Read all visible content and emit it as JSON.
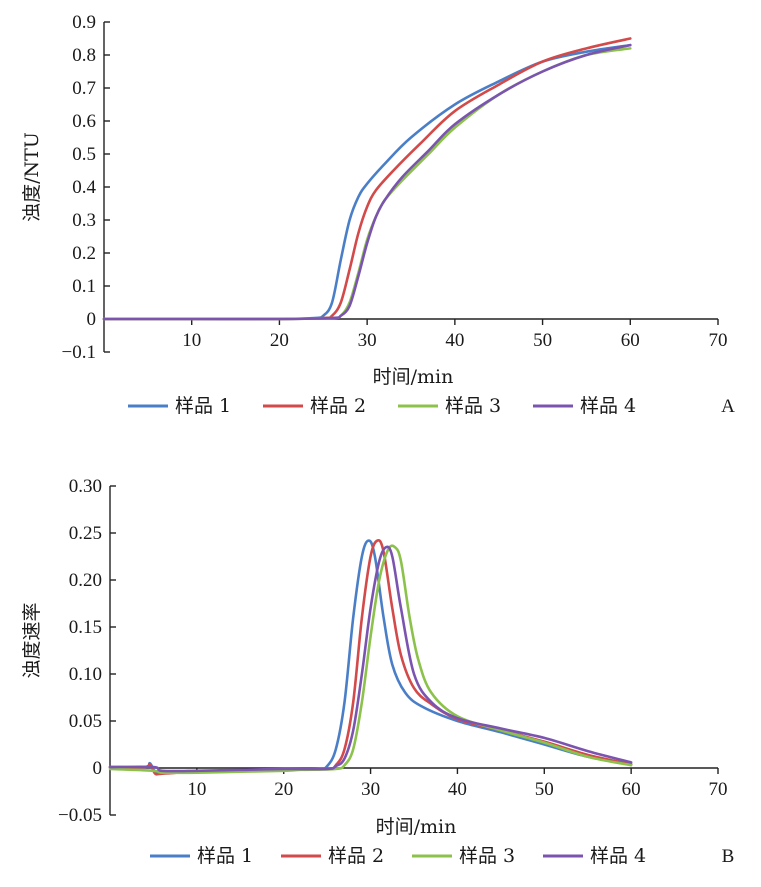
{
  "chart_data": [
    {
      "type": "line",
      "panel_label": "A",
      "xlabel": "时间/min",
      "ylabel": "浊度/NTU",
      "xlim": [
        0,
        70
      ],
      "ylim": [
        -0.1,
        0.9
      ],
      "xticks": [
        10,
        20,
        30,
        40,
        50,
        60,
        70
      ],
      "yticks": [
        -0.1,
        0,
        0.1,
        0.2,
        0.3,
        0.4,
        0.5,
        0.6,
        0.7,
        0.8,
        0.9
      ],
      "ytick_labels": [
        "−0.1",
        "0",
        "0.1",
        "0.2",
        "0.3",
        "0.4",
        "0.5",
        "0.6",
        "0.7",
        "0.8",
        "0.9"
      ],
      "legend": "bottom",
      "series": [
        {
          "name": "样品 1",
          "color": "#4a7fc8",
          "x": [
            0,
            10,
            20,
            24,
            25,
            26,
            27,
            28,
            29,
            30,
            32,
            35,
            40,
            45,
            50,
            55,
            60
          ],
          "y": [
            0,
            0,
            0,
            0.003,
            0.01,
            0.05,
            0.18,
            0.3,
            0.37,
            0.41,
            0.47,
            0.55,
            0.65,
            0.72,
            0.78,
            0.81,
            0.83
          ]
        },
        {
          "name": "样品 2",
          "color": "#d24a4a",
          "x": [
            0,
            10,
            20,
            25,
            26,
            27,
            28,
            29,
            30,
            31,
            33,
            36,
            40,
            45,
            50,
            55,
            60
          ],
          "y": [
            0,
            0,
            0,
            0.003,
            0.01,
            0.05,
            0.15,
            0.26,
            0.34,
            0.39,
            0.45,
            0.53,
            0.63,
            0.71,
            0.78,
            0.82,
            0.85
          ]
        },
        {
          "name": "样品 3",
          "color": "#8cc24c",
          "x": [
            0,
            10,
            20,
            26,
            27,
            28,
            29,
            30,
            31,
            32,
            34,
            37,
            40,
            45,
            50,
            55,
            60
          ],
          "y": [
            0,
            0,
            0,
            0.003,
            0.01,
            0.05,
            0.14,
            0.24,
            0.31,
            0.36,
            0.42,
            0.5,
            0.58,
            0.68,
            0.75,
            0.8,
            0.82
          ]
        },
        {
          "name": "样品 4",
          "color": "#7b54b0",
          "x": [
            0,
            10,
            20,
            26,
            27,
            28,
            29,
            30,
            31,
            32,
            34,
            37,
            40,
            45,
            50,
            55,
            60
          ],
          "y": [
            0,
            0,
            0,
            0.003,
            0.01,
            0.04,
            0.13,
            0.23,
            0.31,
            0.36,
            0.43,
            0.51,
            0.59,
            0.68,
            0.75,
            0.8,
            0.83
          ]
        }
      ]
    },
    {
      "type": "line",
      "panel_label": "B",
      "xlabel": "时间/min",
      "ylabel": "浊度速率",
      "xlim": [
        0,
        70
      ],
      "ylim": [
        -0.05,
        0.3
      ],
      "xticks": [
        10,
        20,
        30,
        40,
        50,
        60,
        70
      ],
      "yticks": [
        -0.05,
        0,
        0.05,
        0.1,
        0.15,
        0.2,
        0.25,
        0.3
      ],
      "ytick_labels": [
        "−0.05",
        "0",
        "0.05",
        "0.10",
        "0.15",
        "0.20",
        "0.25",
        "0.30"
      ],
      "legend": "bottom",
      "series": [
        {
          "name": "样品 1",
          "color": "#4a7fc8",
          "x": [
            0,
            4,
            4.6,
            5.2,
            6,
            10,
            15,
            20,
            24,
            25,
            26,
            27,
            28,
            29,
            29.8,
            30.5,
            31.5,
            32.5,
            34,
            36,
            40,
            45,
            50,
            55,
            60
          ],
          "y": [
            0.001,
            0.001,
            0.005,
            -0.004,
            -0.005,
            -0.004,
            -0.003,
            -0.002,
            -0.001,
            0.002,
            0.02,
            0.07,
            0.16,
            0.225,
            0.242,
            0.225,
            0.16,
            0.11,
            0.08,
            0.065,
            0.05,
            0.038,
            0.025,
            0.012,
            0.004
          ]
        },
        {
          "name": "样品 2",
          "color": "#d24a4a",
          "x": [
            0,
            4,
            4.6,
            5.2,
            6,
            10,
            15,
            20,
            25,
            26,
            27,
            28,
            29,
            30,
            30.8,
            31.5,
            32.5,
            33.5,
            35,
            37,
            40,
            45,
            50,
            55,
            60
          ],
          "y": [
            0.001,
            0.001,
            0.004,
            -0.006,
            -0.006,
            -0.004,
            -0.003,
            -0.002,
            -0.001,
            0.003,
            0.02,
            0.07,
            0.16,
            0.225,
            0.242,
            0.23,
            0.17,
            0.12,
            0.085,
            0.068,
            0.052,
            0.04,
            0.028,
            0.014,
            0.004
          ]
        },
        {
          "name": "样品 3",
          "color": "#8cc24c",
          "x": [
            0,
            5,
            6,
            10,
            15,
            20,
            22,
            26,
            27,
            28,
            29,
            30,
            31,
            32,
            32.8,
            33.5,
            34.5,
            35.5,
            37,
            40,
            45,
            50,
            55,
            60
          ],
          "y": [
            -0.001,
            -0.003,
            -0.005,
            -0.005,
            -0.004,
            -0.003,
            -0.002,
            -0.001,
            0.003,
            0.02,
            0.07,
            0.14,
            0.2,
            0.232,
            0.235,
            0.22,
            0.16,
            0.115,
            0.08,
            0.055,
            0.04,
            0.027,
            0.012,
            0.003
          ]
        },
        {
          "name": "样品 4",
          "color": "#7b54b0",
          "x": [
            0,
            5,
            6,
            10,
            15,
            20,
            25,
            26,
            27,
            28,
            29,
            30,
            31,
            31.8,
            32.5,
            33.5,
            35,
            37,
            40,
            45,
            50,
            55,
            60
          ],
          "y": [
            0.001,
            0.001,
            -0.003,
            -0.003,
            -0.002,
            -0.001,
            -0.001,
            0.002,
            0.01,
            0.04,
            0.1,
            0.17,
            0.22,
            0.235,
            0.225,
            0.17,
            0.1,
            0.07,
            0.053,
            0.042,
            0.032,
            0.018,
            0.006
          ]
        }
      ]
    }
  ]
}
